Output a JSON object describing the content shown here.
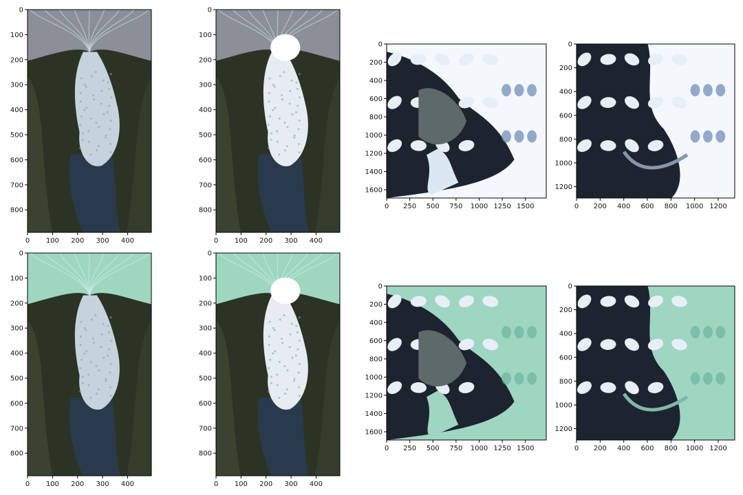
{
  "figure": {
    "panels": [
      {
        "id": "top-1",
        "image": {
          "description": "satellite image of glacier outlet and fjord with floating ice mélange",
          "mask_overlay": false
        },
        "x_ticks": [
          "0",
          "100",
          "200",
          "300",
          "400"
        ],
        "y_ticks": [
          "0",
          "100",
          "200",
          "300",
          "400",
          "500",
          "600",
          "700",
          "800"
        ],
        "x_range": [
          0,
          495
        ],
        "y_range": [
          0,
          890
        ]
      },
      {
        "id": "top-2",
        "image": {
          "description": "satellite image of same fjord with brighter ice mélange",
          "mask_overlay": false
        },
        "x_ticks": [
          "0",
          "100",
          "200",
          "300",
          "400"
        ],
        "y_ticks": [
          "0",
          "100",
          "200",
          "300",
          "400",
          "500",
          "600",
          "700",
          "800"
        ],
        "x_range": [
          0,
          495
        ],
        "y_range": [
          0,
          890
        ]
      },
      {
        "id": "top-3",
        "image": {
          "description": "snow-covered mountains around a large glacier and lake",
          "mask_overlay": false
        },
        "x_ticks": [
          "0",
          "250",
          "500",
          "750",
          "1000",
          "1250",
          "1500"
        ],
        "y_ticks": [
          "0",
          "200",
          "400",
          "600",
          "800",
          "1000",
          "1200",
          "1400",
          "1600"
        ],
        "x_range": [
          0,
          1725
        ],
        "y_range": [
          0,
          1690
        ]
      },
      {
        "id": "top-4",
        "image": {
          "description": "snow-covered mountains with glacier tongues",
          "mask_overlay": false
        },
        "x_ticks": [
          "0",
          "200",
          "400",
          "600",
          "800",
          "1000",
          "1200"
        ],
        "y_ticks": [
          "0",
          "200",
          "400",
          "600",
          "800",
          "1000",
          "1200"
        ],
        "x_range": [
          0,
          1340
        ],
        "y_range": [
          0,
          1295
        ]
      },
      {
        "id": "bottom-1",
        "image": {
          "description": "same as top-1 with green glacier mask overlay",
          "mask_overlay": true
        },
        "x_ticks": [
          "0",
          "100",
          "200",
          "300",
          "400"
        ],
        "y_ticks": [
          "0",
          "100",
          "200",
          "300",
          "400",
          "500",
          "600",
          "700",
          "800"
        ],
        "x_range": [
          0,
          495
        ],
        "y_range": [
          0,
          890
        ]
      },
      {
        "id": "bottom-2",
        "image": {
          "description": "same as top-2 with green glacier mask overlay",
          "mask_overlay": true
        },
        "x_ticks": [
          "0",
          "100",
          "200",
          "300",
          "400"
        ],
        "y_ticks": [
          "0",
          "100",
          "200",
          "300",
          "400",
          "500",
          "600",
          "700",
          "800"
        ],
        "x_range": [
          0,
          495
        ],
        "y_range": [
          0,
          890
        ]
      },
      {
        "id": "bottom-3",
        "image": {
          "description": "same as top-3 with green glacier mask overlay",
          "mask_overlay": true
        },
        "x_ticks": [
          "0",
          "250",
          "500",
          "750",
          "1000",
          "1250",
          "1500"
        ],
        "y_ticks": [
          "0",
          "200",
          "400",
          "600",
          "800",
          "1000",
          "1200",
          "1400",
          "1600"
        ],
        "x_range": [
          0,
          1725
        ],
        "y_range": [
          0,
          1690
        ]
      },
      {
        "id": "bottom-4",
        "image": {
          "description": "same as top-4 with green glacier mask overlay",
          "mask_overlay": true
        },
        "x_ticks": [
          "0",
          "200",
          "400",
          "600",
          "800",
          "1000",
          "1200"
        ],
        "y_ticks": [
          "0",
          "200",
          "400",
          "600",
          "800",
          "1000",
          "1200"
        ],
        "x_range": [
          0,
          1340
        ],
        "y_range": [
          0,
          1295
        ]
      }
    ],
    "colors": {
      "mask": "#9ed6c2",
      "snow": "#f4f7fb",
      "rock": "#1e2330",
      "water": "#2a3a4d",
      "ice": "#c6d2dc",
      "terrain_dark": "#2b3324",
      "glacier_stripe": "#8a8f98"
    }
  }
}
